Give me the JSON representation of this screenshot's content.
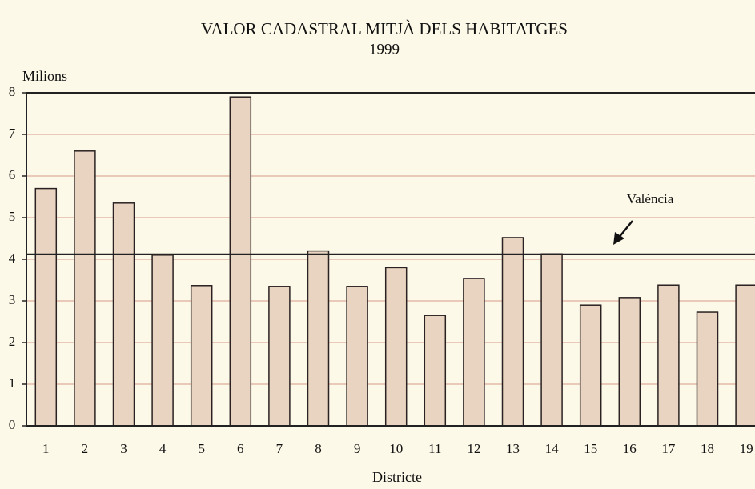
{
  "chart_data": {
    "type": "bar",
    "title": "VALOR CADASTRAL MITJÀ DELS HABITATGES",
    "subtitle": "1999",
    "y_label": "Milions",
    "x_label": "Districte",
    "categories": [
      "1",
      "2",
      "3",
      "4",
      "5",
      "6",
      "7",
      "8",
      "9",
      "10",
      "11",
      "12",
      "13",
      "14",
      "15",
      "16",
      "17",
      "18",
      "19"
    ],
    "values": [
      5.7,
      6.6,
      5.35,
      4.1,
      3.37,
      7.9,
      3.35,
      4.2,
      3.35,
      3.8,
      2.65,
      3.54,
      4.52,
      4.13,
      2.9,
      3.08,
      3.38,
      2.73,
      3.38
    ],
    "color": "#e8d4c0",
    "ylim": [
      0,
      8
    ],
    "yticks": [
      0,
      1,
      2,
      3,
      4,
      5,
      6,
      7,
      8
    ],
    "grid": true,
    "reference_line": {
      "value": 4.12,
      "label": "València"
    }
  }
}
